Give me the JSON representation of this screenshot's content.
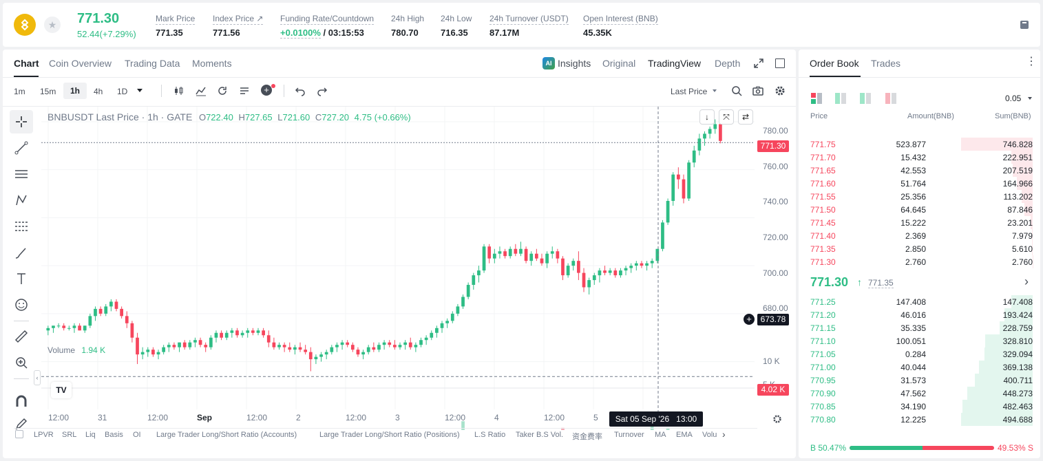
{
  "ticker": {
    "last_price": "771.30",
    "change": "52.44(+7.29%)",
    "stats": [
      {
        "label": "Mark Price",
        "value": "771.35"
      },
      {
        "label": "Index Price ↗",
        "value": "771.56"
      },
      {
        "label": "Funding Rate/Countdown",
        "value_green": "+0.0100%",
        "value": "/ 03:15:53"
      },
      {
        "label": "24h High",
        "value": "780.70"
      },
      {
        "label": "24h Low",
        "value": "716.35"
      },
      {
        "label": "24h Turnover (USDT)",
        "value": "87.17M"
      },
      {
        "label": "Open Interest (BNB)",
        "value": "45.35K"
      }
    ]
  },
  "chart_tabs": [
    "Chart",
    "Coin Overview",
    "Trading Data",
    "Moments"
  ],
  "chart_views": {
    "insights": "Insights",
    "original": "Original",
    "tradingview": "TradingView",
    "depth": "Depth"
  },
  "intervals": [
    "1m",
    "15m",
    "1h",
    "4h",
    "1D"
  ],
  "price_source": "Last Price",
  "legend": {
    "symbol": "BNBUSDT Last Price · 1h · GATE",
    "o_label": "O",
    "o": "722.40",
    "h_label": "H",
    "h": "727.65",
    "l_label": "L",
    "l": "721.60",
    "c_label": "C",
    "c": "727.20",
    "chg": "4.75 (+0.66%)"
  },
  "volume_legend": {
    "label": "Volume",
    "value": "1.94 K"
  },
  "price_axis": [
    "780.00",
    "760.00",
    "740.00",
    "720.00",
    "700.00",
    "680.00"
  ],
  "volume_axis": [
    "10 K",
    "5 K"
  ],
  "markers": {
    "last": "771.30",
    "crosshair": "673.78",
    "volume": "4.02 K"
  },
  "time_axis": [
    "12:00",
    "31",
    "12:00",
    "Sep",
    "12:00",
    "2",
    "12:00",
    "3",
    "12:00",
    "4",
    "12:00",
    "5",
    "12:0"
  ],
  "crosshair_time": "Sat 05 Sep '26   13:00",
  "indicators": [
    "LPVR",
    "SRL",
    "Liq",
    "Basis",
    "OI",
    "Large Trader Long/Short Ratio (Accounts)",
    "Large Trader Long/Short Ratio (Positions)",
    "L.S Ratio",
    "Taker B.S Vol.",
    "资金费率",
    "Turnover",
    "MA",
    "EMA",
    "Volu"
  ],
  "chart_data": {
    "type": "candlestick",
    "ylim": [
      673,
      784
    ],
    "candles_ohlc": [
      [
        693,
        695,
        691,
        694
      ],
      [
        694,
        695,
        692,
        695
      ],
      [
        695,
        696,
        694,
        695
      ],
      [
        695,
        696,
        693,
        694
      ],
      [
        694,
        695,
        693,
        694
      ],
      [
        694,
        696,
        692,
        695
      ],
      [
        695,
        696,
        693,
        693
      ],
      [
        693,
        695,
        692,
        695
      ],
      [
        695,
        700,
        694,
        699
      ],
      [
        699,
        703,
        697,
        702
      ],
      [
        702,
        703,
        699,
        700
      ],
      [
        700,
        704,
        699,
        703
      ],
      [
        703,
        706,
        701,
        705
      ],
      [
        705,
        706,
        701,
        702
      ],
      [
        702,
        703,
        698,
        699
      ],
      [
        699,
        701,
        694,
        696
      ],
      [
        696,
        697,
        688,
        690
      ],
      [
        690,
        692,
        679,
        683
      ],
      [
        683,
        686,
        681,
        684
      ],
      [
        684,
        686,
        682,
        685
      ],
      [
        685,
        686,
        682,
        683
      ],
      [
        683,
        685,
        681,
        684
      ],
      [
        684,
        687,
        683,
        686
      ],
      [
        686,
        688,
        684,
        687
      ],
      [
        687,
        688,
        685,
        686
      ],
      [
        686,
        688,
        684,
        688
      ],
      [
        688,
        689,
        685,
        686
      ],
      [
        686,
        689,
        685,
        688
      ],
      [
        688,
        690,
        686,
        689
      ],
      [
        689,
        690,
        686,
        687
      ],
      [
        687,
        688,
        684,
        686
      ],
      [
        686,
        691,
        685,
        690
      ],
      [
        690,
        693,
        688,
        692
      ],
      [
        692,
        693,
        689,
        690
      ],
      [
        690,
        693,
        689,
        692
      ],
      [
        692,
        694,
        690,
        693
      ],
      [
        693,
        694,
        690,
        691
      ],
      [
        691,
        693,
        690,
        692
      ],
      [
        692,
        694,
        690,
        693
      ],
      [
        693,
        694,
        691,
        692
      ],
      [
        692,
        694,
        691,
        693
      ],
      [
        693,
        694,
        690,
        691
      ],
      [
        691,
        693,
        686,
        688
      ],
      [
        688,
        690,
        685,
        686
      ],
      [
        686,
        688,
        685,
        687
      ],
      [
        687,
        688,
        684,
        686
      ],
      [
        686,
        688,
        684,
        685
      ],
      [
        685,
        687,
        683,
        686
      ],
      [
        686,
        688,
        684,
        685
      ],
      [
        685,
        687,
        683,
        684
      ],
      [
        684,
        686,
        676,
        681
      ],
      [
        681,
        683,
        679,
        682
      ],
      [
        682,
        684,
        680,
        683
      ],
      [
        683,
        685,
        681,
        684
      ],
      [
        684,
        687,
        683,
        686
      ],
      [
        686,
        688,
        684,
        687
      ],
      [
        687,
        689,
        685,
        688
      ],
      [
        688,
        689,
        686,
        687
      ],
      [
        687,
        688,
        684,
        685
      ],
      [
        685,
        686,
        682,
        683
      ],
      [
        683,
        685,
        681,
        684
      ],
      [
        684,
        687,
        683,
        686
      ],
      [
        686,
        688,
        684,
        685
      ],
      [
        685,
        688,
        684,
        687
      ],
      [
        687,
        689,
        685,
        688
      ],
      [
        688,
        689,
        686,
        687
      ],
      [
        687,
        689,
        685,
        686
      ],
      [
        686,
        688,
        685,
        687
      ],
      [
        687,
        689,
        685,
        688
      ],
      [
        688,
        690,
        685,
        686
      ],
      [
        686,
        688,
        684,
        687
      ],
      [
        687,
        690,
        686,
        689
      ],
      [
        689,
        691,
        687,
        690
      ],
      [
        690,
        693,
        689,
        692
      ],
      [
        692,
        695,
        690,
        694
      ],
      [
        694,
        697,
        692,
        696
      ],
      [
        696,
        698,
        694,
        697
      ],
      [
        697,
        701,
        696,
        700
      ],
      [
        700,
        704,
        699,
        703
      ],
      [
        703,
        708,
        702,
        707
      ],
      [
        707,
        713,
        706,
        712
      ],
      [
        712,
        717,
        710,
        716
      ],
      [
        716,
        720,
        713,
        718
      ],
      [
        718,
        729,
        717,
        728
      ],
      [
        728,
        729,
        721,
        723
      ],
      [
        723,
        727,
        721,
        725
      ],
      [
        725,
        728,
        723,
        726
      ],
      [
        726,
        727,
        723,
        724
      ],
      [
        724,
        728,
        723,
        727
      ],
      [
        727,
        729,
        724,
        725
      ],
      [
        725,
        730,
        724,
        727
      ],
      [
        727,
        728,
        721,
        722
      ],
      [
        722,
        726,
        720,
        725
      ],
      [
        725,
        727,
        722,
        723
      ],
      [
        723,
        725,
        720,
        721
      ],
      [
        721,
        726,
        719,
        725
      ],
      [
        725,
        728,
        723,
        726
      ],
      [
        726,
        727,
        721,
        723
      ],
      [
        723,
        724,
        714,
        716
      ],
      [
        716,
        721,
        715,
        720
      ],
      [
        720,
        723,
        718,
        722
      ],
      [
        722,
        726,
        714,
        717
      ],
      [
        717,
        719,
        709,
        711
      ],
      [
        711,
        715,
        708,
        714
      ],
      [
        714,
        717,
        712,
        716
      ],
      [
        716,
        719,
        713,
        718
      ],
      [
        718,
        720,
        716,
        717
      ],
      [
        717,
        719,
        716,
        718
      ],
      [
        718,
        719,
        715,
        716
      ],
      [
        716,
        719,
        715,
        718
      ],
      [
        718,
        720,
        716,
        719
      ],
      [
        719,
        721,
        717,
        720
      ],
      [
        720,
        722,
        718,
        721
      ],
      [
        721,
        722,
        719,
        720
      ],
      [
        720,
        722,
        718,
        721
      ],
      [
        721,
        723,
        719,
        722
      ],
      [
        722,
        727,
        721,
        727
      ],
      [
        727,
        739,
        726,
        738
      ],
      [
        738,
        748,
        737,
        747
      ],
      [
        747,
        759,
        745,
        758
      ],
      [
        758,
        761,
        752,
        756
      ],
      [
        756,
        758,
        746,
        748
      ],
      [
        748,
        764,
        747,
        763
      ],
      [
        763,
        770,
        761,
        768
      ],
      [
        768,
        775,
        766,
        773
      ],
      [
        773,
        776,
        770,
        775
      ],
      [
        775,
        778,
        773,
        777
      ],
      [
        777,
        781,
        775,
        779
      ],
      [
        779,
        781,
        771,
        772
      ]
    ],
    "volume_fraction_of_scale": [
      0.35,
      0.2,
      0.25,
      0.3,
      0.25,
      0.3,
      0.35,
      0.3,
      0.45,
      0.4,
      0.35,
      0.3,
      0.45,
      0.4,
      0.35,
      0.5,
      0.55,
      0.6,
      0.3,
      0.25,
      0.3,
      0.25,
      0.3,
      0.25,
      0.3,
      0.35,
      0.3,
      0.35,
      0.3,
      0.25,
      0.35,
      0.3,
      0.3,
      0.35,
      0.3,
      0.3,
      0.25,
      0.3,
      0.25,
      0.3,
      0.35,
      0.25,
      0.3,
      0.35,
      0.3,
      0.25,
      0.3,
      0.35,
      0.45,
      0.4,
      1.05,
      0.55,
      0.4,
      0.35,
      0.3,
      0.4,
      0.35,
      0.3,
      0.35,
      0.4,
      0.45,
      0.35,
      0.3,
      0.35,
      0.3,
      0.25,
      0.3,
      0.35,
      0.3,
      0.35,
      0.45,
      0.4,
      0.5,
      0.45,
      0.55,
      0.5,
      0.6,
      0.7,
      0.9,
      1.75,
      1.05,
      0.95,
      0.75,
      0.6,
      0.55,
      0.5,
      0.45,
      0.6,
      0.55,
      0.5,
      0.55,
      0.6,
      0.7,
      0.8,
      0.75,
      0.55,
      0.5,
      0.6,
      1.45,
      1.0,
      0.7,
      0.5,
      0.3,
      0.35,
      0.25,
      0.25,
      0.3,
      0.35,
      0.3,
      0.4,
      0.35,
      0.4,
      0.5,
      0.8,
      1.25,
      1.75,
      1.0,
      1.25,
      1.45,
      1.3,
      1.15,
      1.35,
      1.3,
      1.0,
      0.75
    ]
  },
  "orderbook": {
    "tabs": [
      "Order Book",
      "Trades"
    ],
    "precision": "0.05",
    "headers": [
      "Price",
      "Amount(BNB)",
      "Sum(BNB)"
    ],
    "asks": [
      [
        "771.75",
        "523.877",
        "746.828",
        1.0
      ],
      [
        "771.70",
        "15.432",
        "222.951",
        0.3
      ],
      [
        "771.65",
        "42.553",
        "207.519",
        0.28
      ],
      [
        "771.60",
        "51.764",
        "164.966",
        0.22
      ],
      [
        "771.55",
        "25.356",
        "113.202",
        0.15
      ],
      [
        "771.50",
        "64.645",
        "87.846",
        0.12
      ],
      [
        "771.45",
        "15.222",
        "23.201",
        0.03
      ],
      [
        "771.40",
        "2.369",
        "7.979",
        0.01
      ],
      [
        "771.35",
        "2.850",
        "5.610",
        0.008
      ],
      [
        "771.30",
        "2.760",
        "2.760",
        0.004
      ]
    ],
    "mid_price": "771.30",
    "mid_mark": "771.35",
    "bids": [
      [
        "771.25",
        "147.408",
        "147.408",
        0.3
      ],
      [
        "771.20",
        "46.016",
        "193.424",
        0.39
      ],
      [
        "771.15",
        "35.335",
        "228.759",
        0.46
      ],
      [
        "771.10",
        "100.051",
        "328.810",
        0.66
      ],
      [
        "771.05",
        "0.284",
        "329.094",
        0.67
      ],
      [
        "771.00",
        "40.044",
        "369.138",
        0.75
      ],
      [
        "770.95",
        "31.573",
        "400.711",
        0.81
      ],
      [
        "770.90",
        "47.562",
        "448.273",
        0.91
      ],
      [
        "770.85",
        "34.190",
        "482.463",
        0.98
      ],
      [
        "770.80",
        "12.225",
        "494.688",
        1.0
      ]
    ],
    "ratio_buy": "B 50.47%",
    "ratio_sell": "49.53% S",
    "buy_fraction": 0.5047
  },
  "colors": {
    "up": "#2ebd85",
    "down": "#f6465d",
    "bnb": "#f0b90b"
  }
}
